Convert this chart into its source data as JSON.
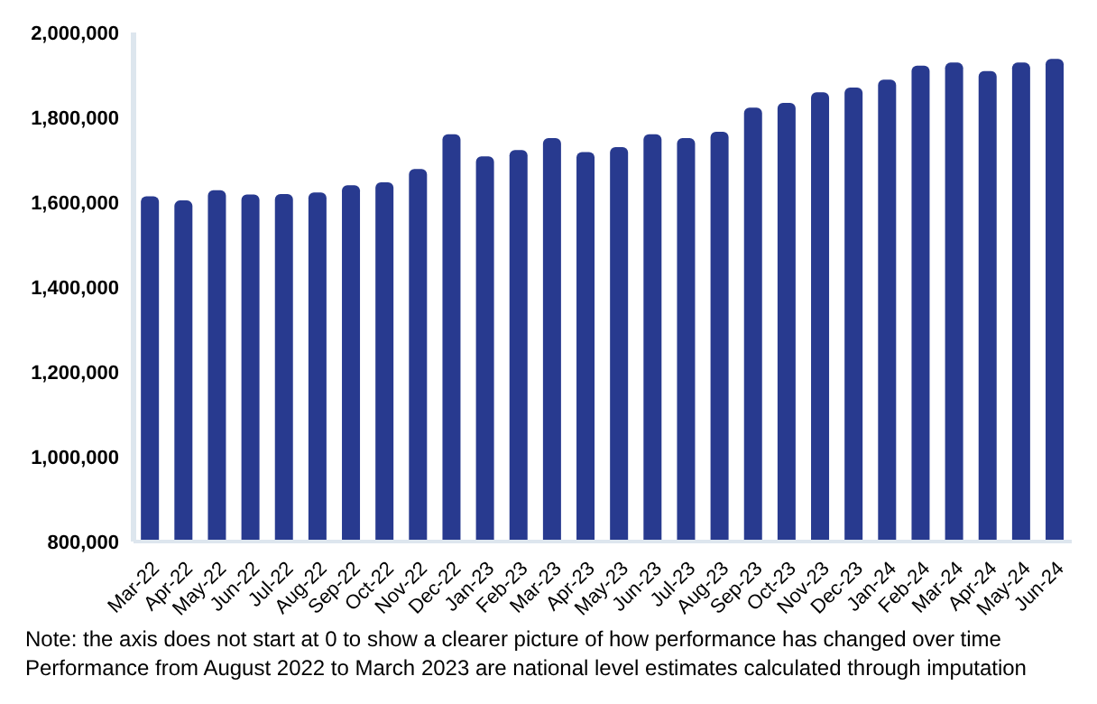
{
  "chart_data": {
    "type": "bar",
    "categories": [
      "Mar-22",
      "Apr-22",
      "May-22",
      "Jun-22",
      "Jul-22",
      "Aug-22",
      "Sep-22",
      "Oct-22",
      "Nov-22",
      "Dec-22",
      "Jan-23",
      "Feb-23",
      "Mar-23",
      "Apr-23",
      "May-23",
      "Jun-23",
      "Jul-23",
      "Aug-23",
      "Sep-23",
      "Oct-23",
      "Nov-23",
      "Dec-23",
      "Jan-24",
      "Feb-24",
      "Mar-24",
      "Apr-24",
      "May-24",
      "Jun-24"
    ],
    "values": [
      1614000,
      1604000,
      1628000,
      1618000,
      1619000,
      1623000,
      1640000,
      1647000,
      1678000,
      1760000,
      1708000,
      1723000,
      1751000,
      1718000,
      1730000,
      1760000,
      1751000,
      1766000,
      1823000,
      1834000,
      1859000,
      1870000,
      1889000,
      1922000,
      1929000,
      1909000,
      1929000,
      1938000
    ],
    "color": "#283a8f",
    "ylim": [
      800000,
      2000000
    ],
    "yticks": [
      {
        "value": 800000,
        "label": "800,000"
      },
      {
        "value": 1000000,
        "label": "1,000,000"
      },
      {
        "value": 1200000,
        "label": "1,200,000"
      },
      {
        "value": 1400000,
        "label": "1,400,000"
      },
      {
        "value": 1600000,
        "label": "1,600,000"
      },
      {
        "value": 1800000,
        "label": "1,800,000"
      },
      {
        "value": 2000000,
        "label": "2,000,000"
      }
    ],
    "grid": false,
    "legend": false,
    "annotations": [
      "Note: the axis does not start at 0 to show a clearer picture of how performance has changed over time",
      "Performance from August 2022 to March 2023 are national level estimates calculated through imputation"
    ]
  }
}
